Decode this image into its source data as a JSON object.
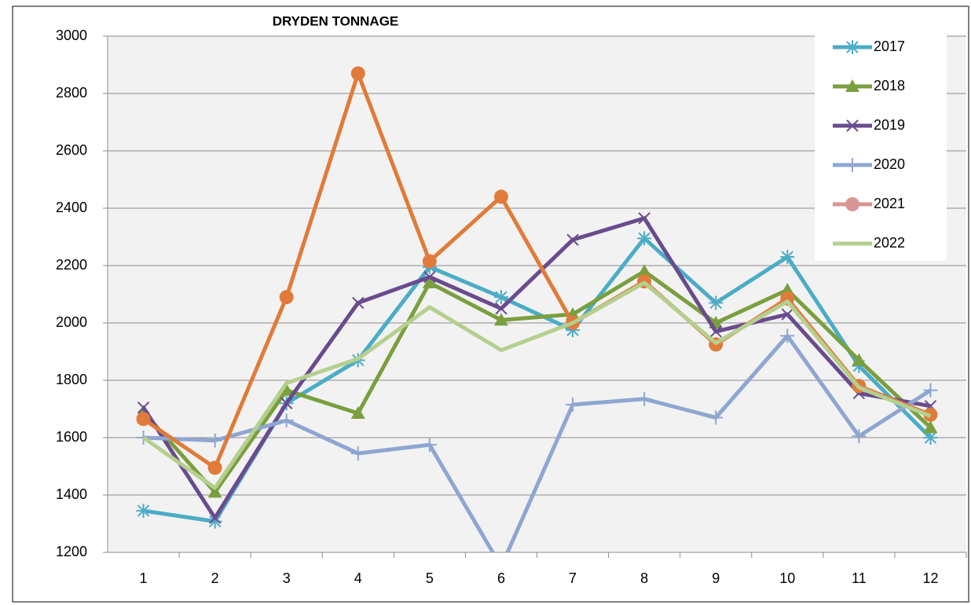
{
  "chart_data": {
    "type": "line",
    "title": "DRYDEN TONNAGE",
    "categories": [
      1,
      2,
      3,
      4,
      5,
      6,
      7,
      8,
      9,
      10,
      11,
      12
    ],
    "ylim": [
      1200,
      3000
    ],
    "yticks": [
      1200,
      1400,
      1600,
      1800,
      2000,
      2200,
      2400,
      2600,
      2800,
      3000
    ],
    "grid": true,
    "legend": "upper right",
    "series": [
      {
        "name": "2017",
        "color": "#4bacc6",
        "marker": "asterisk",
        "values": [
          1345,
          1308,
          1720,
          1870,
          2195,
          2090,
          1975,
          2295,
          2070,
          2230,
          1850,
          1600
        ]
      },
      {
        "name": "2018",
        "color": "#7a9f3e",
        "marker": "triangle",
        "values": [
          1690,
          1410,
          1765,
          1685,
          2140,
          2010,
          2030,
          2180,
          2000,
          2115,
          1870,
          1635
        ]
      },
      {
        "name": "2019",
        "color": "#6a4b8e",
        "marker": "x",
        "values": [
          1705,
          1320,
          1720,
          2070,
          2160,
          2050,
          2290,
          2365,
          1970,
          2030,
          1755,
          1710
        ]
      },
      {
        "name": "2020",
        "color": "#8ea6d1",
        "marker": "plus",
        "values": [
          1600,
          1590,
          1660,
          1545,
          1575,
          1150,
          1715,
          1735,
          1670,
          1955,
          1605,
          1765
        ]
      },
      {
        "name": "2021",
        "color": "#e07b39",
        "legend_color": "#d99694",
        "marker": "circle",
        "values": [
          1665,
          1495,
          2090,
          2870,
          2215,
          2440,
          2000,
          2145,
          1925,
          2085,
          1780,
          1680
        ]
      },
      {
        "name": "2022",
        "color": "#b5cf8f",
        "marker": "none",
        "values": [
          1600,
          1425,
          1790,
          1875,
          2055,
          1905,
          2000,
          2140,
          1930,
          2075,
          1775,
          1675
        ]
      }
    ]
  }
}
